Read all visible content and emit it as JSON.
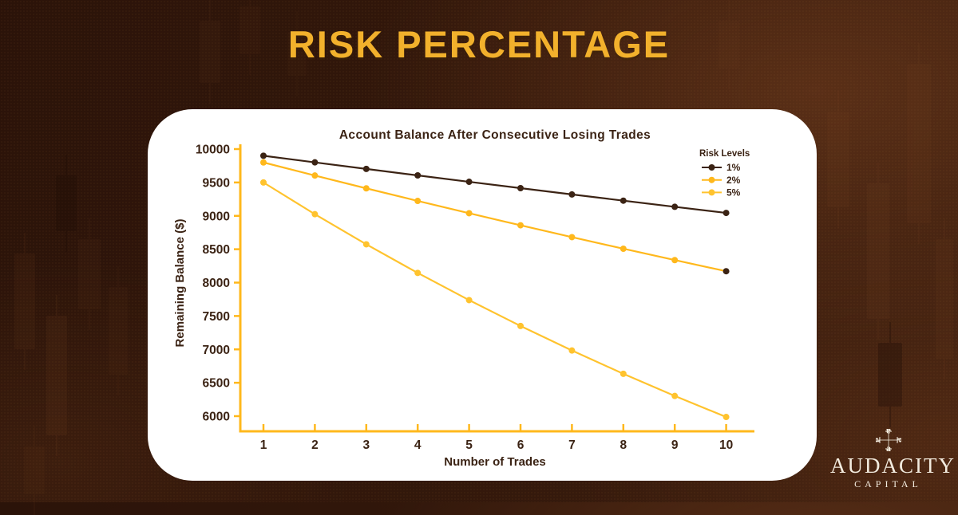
{
  "header": {
    "title": "RISK PERCENTAGE"
  },
  "brand": {
    "name": "AUDACITY",
    "subtitle": "CAPITAL",
    "emblem": "audacity-monogram-icon"
  },
  "colors": {
    "background_dark": "#2B1309",
    "background_light": "#3E1F0F",
    "title_gold": "#F2B12C",
    "axis_gold": "#FFB81C",
    "text_dark_brown": "#3B2314",
    "card_white": "#FFFFFF",
    "logo_cream": "#F3ECDF"
  },
  "chart_data": {
    "type": "line",
    "title": "Account Balance After Consecutive Losing Trades",
    "xlabel": "Number of Trades",
    "ylabel": "Remaining Balance ($)",
    "legend_title": "Risk Levels",
    "legend_position": "top-right-inside",
    "grid": false,
    "x": [
      1,
      2,
      3,
      4,
      5,
      6,
      7,
      8,
      9,
      10
    ],
    "xticklabels": [
      "1",
      "2",
      "3",
      "4",
      "5",
      "6",
      "7",
      "8",
      "9",
      "10"
    ],
    "ylim": [
      6000,
      10000
    ],
    "yticks": [
      6000,
      6500,
      7000,
      7500,
      8000,
      8500,
      9000,
      9500,
      10000
    ],
    "yticklabels": [
      "6000",
      "6500",
      "7000",
      "7500",
      "8000",
      "8500",
      "9000",
      "9500",
      "10000"
    ],
    "series": [
      {
        "name": "1%",
        "color": "#3B2314",
        "values": [
          9900,
          9801,
          9702.99,
          9605.96,
          9509.9,
          9414.8,
          9320.65,
          9227.45,
          9135.17,
          9043.82
        ]
      },
      {
        "name": "2%",
        "color": "#FFB81C",
        "end_marker_color": "#3B2314",
        "values": [
          9800,
          9604,
          9411.92,
          9223.68,
          9039.21,
          8858.42,
          8681.26,
          8507.63,
          8337.48,
          8170.73
        ]
      },
      {
        "name": "5%",
        "color": "#FFC32E",
        "values": [
          9500,
          9025,
          8573.75,
          8145.06,
          7737.81,
          7350.92,
          6983.37,
          6634.2,
          6302.49,
          5987.37
        ]
      }
    ]
  }
}
